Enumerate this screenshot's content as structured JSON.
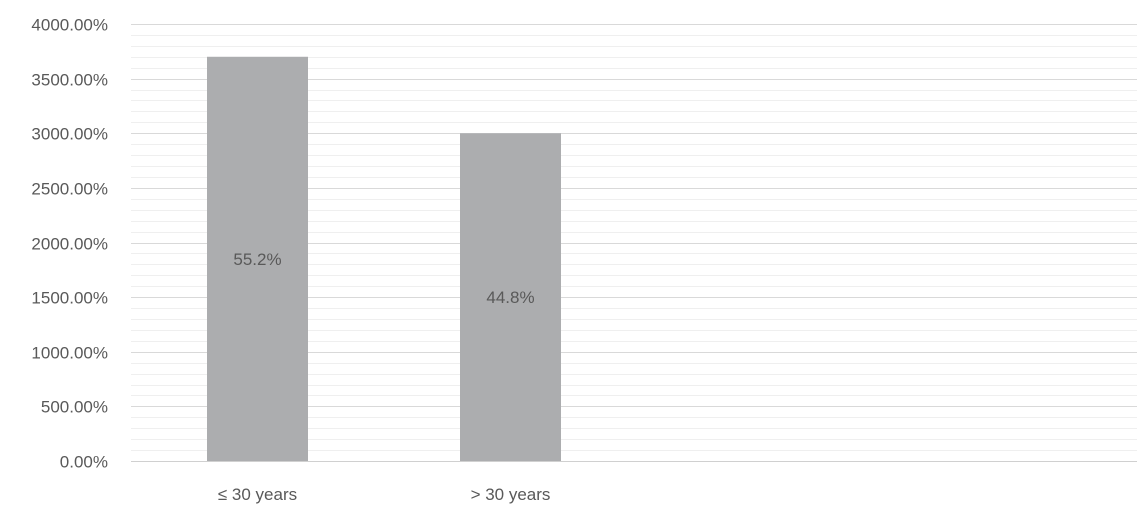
{
  "colors": {
    "bar": "#acadaf",
    "major_grid": "#d9d9d9",
    "minor_grid": "#efefef",
    "axis_line": "#d0d0d0",
    "text": "#595959"
  },
  "chart_data": {
    "type": "bar",
    "title": "",
    "xlabel": "",
    "ylabel": "",
    "categories": [
      "≤ 30 years",
      "> 30 years"
    ],
    "values": [
      3700,
      3000
    ],
    "data_labels": [
      "55.2%",
      "44.8%"
    ],
    "ylim": [
      0,
      4000
    ],
    "yticks": [
      "0.00%",
      "500.00%",
      "1000.00%",
      "1500.00%",
      "2000.00%",
      "2500.00%",
      "3000.00%",
      "3500.00%",
      "4000.00%"
    ],
    "ytick_values": [
      0,
      500,
      1000,
      1500,
      2000,
      2500,
      3000,
      3500,
      4000
    ],
    "minor_step": 100,
    "grid": true,
    "legend": "none"
  }
}
